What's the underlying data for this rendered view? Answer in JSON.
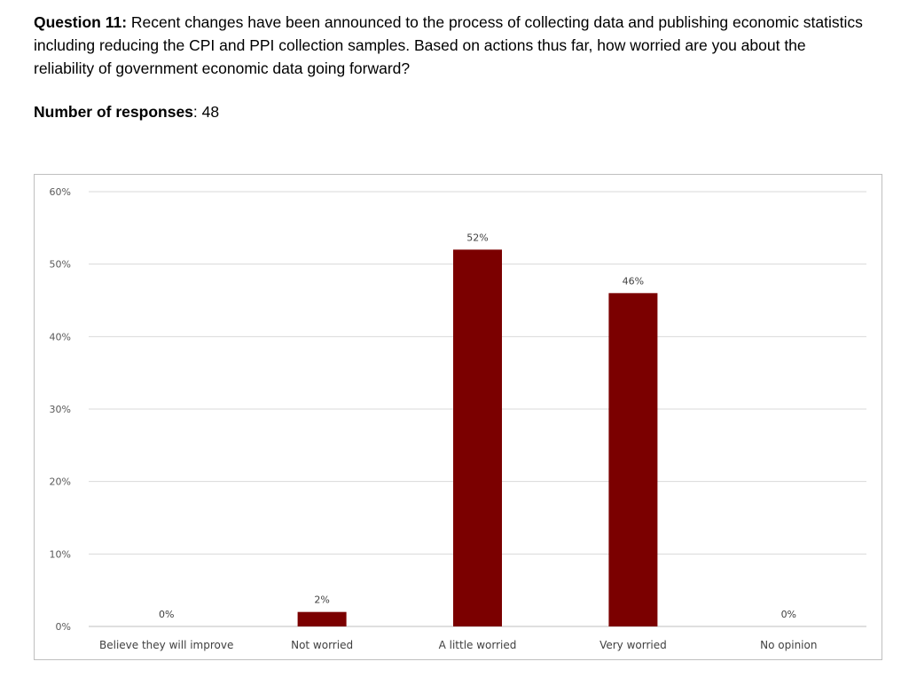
{
  "question": {
    "label": "Question 11:",
    "text": " Recent changes have been announced to the process of collecting data and publishing economic statistics including reducing the CPI and PPI collection samples. Based on actions thus far, how worried are you about the reliability of government economic data going forward?"
  },
  "responses": {
    "label": "Number of responses",
    "value": ": 48"
  },
  "chart_data": {
    "type": "bar",
    "categories": [
      "Believe they will improve",
      "Not worried",
      "A little worried",
      "Very worried",
      "No opinion"
    ],
    "values": [
      0,
      2,
      52,
      46,
      0
    ],
    "data_labels": [
      "0%",
      "2%",
      "52%",
      "46%",
      "0%"
    ],
    "yticks": [
      "0%",
      "10%",
      "20%",
      "30%",
      "40%",
      "50%",
      "60%"
    ],
    "ylim": [
      0,
      60
    ],
    "grid": true,
    "bar_color": "#7b0000",
    "title": "",
    "xlabel": "",
    "ylabel": ""
  }
}
